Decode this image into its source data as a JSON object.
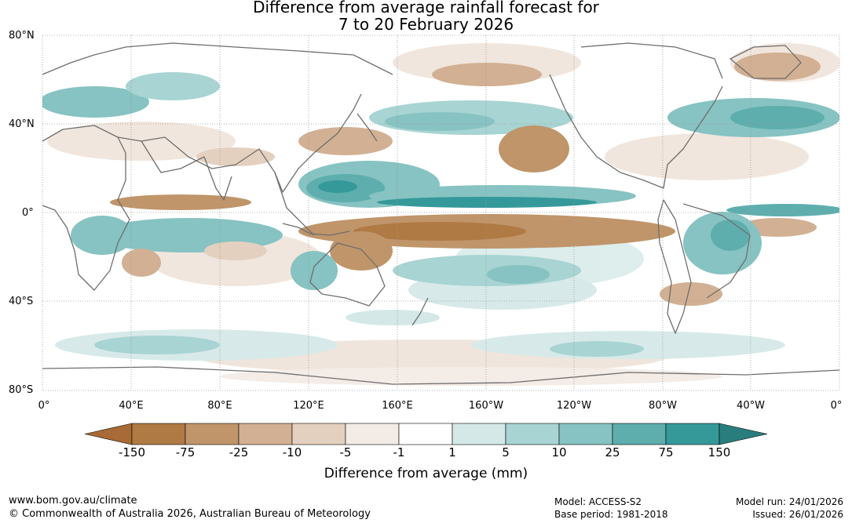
{
  "title_line1": "Difference from average rainfall forecast for",
  "title_line2": "7 to 20 February 2026",
  "lat_labels": [
    "80°N",
    "40°N",
    "0°",
    "40°S",
    "80°S"
  ],
  "lon_labels": [
    "0°",
    "40°E",
    "80°E",
    "120°E",
    "160°E",
    "160°W",
    "120°W",
    "80°W",
    "40°W",
    "0°"
  ],
  "colorbar": {
    "title": "Difference from average (mm)",
    "ticks": [
      "-150",
      "-75",
      "-25",
      "-10",
      "-5",
      "-1",
      "1",
      "5",
      "10",
      "25",
      "75",
      "150"
    ],
    "colors": [
      "#a86a36",
      "#b07a44",
      "#c0956a",
      "#d2b093",
      "#e4d0bf",
      "#f3ebe5",
      "#ffffff",
      "#d3e8e7",
      "#a8d4d3",
      "#86c3c2",
      "#5eaeae",
      "#35999a",
      "#2a7d7d"
    ]
  },
  "footer": {
    "website": "www.bom.gov.au/climate",
    "copyright": "© Commonwealth of Australia 2026, Australian Bureau of Meteorology",
    "model": "Model: ACCESS-S2",
    "base_period": "Base period: 1981-2018",
    "model_run": "Model run: 24/01/2026",
    "issued": "Issued: 26/01/2026"
  }
}
